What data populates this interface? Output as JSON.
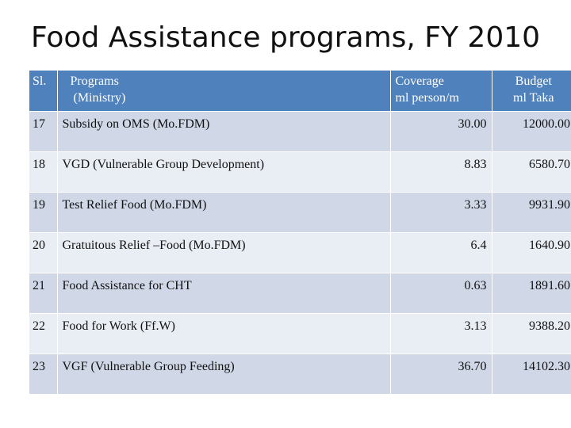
{
  "title": "Food Assistance programs, FY 2010",
  "table": {
    "headers": {
      "sl": "Sl.",
      "programs_line1": "Programs",
      "programs_line2": "(Ministry)",
      "coverage_line1": "Coverage",
      "coverage_line2": "ml person/m",
      "budget_line1": "Budget",
      "budget_line2": "ml Taka"
    },
    "rows": [
      {
        "sl": "17",
        "program": "Subsidy on OMS (Mo.FDM)",
        "coverage": "30.00",
        "budget": "12000.00"
      },
      {
        "sl": "18",
        "program": "VGD (Vulnerable Group Development)",
        "coverage": "8.83",
        "budget": "6580.70"
      },
      {
        "sl": "19",
        "program": "Test Relief Food (Mo.FDM)",
        "coverage": "3.33",
        "budget": "9931.90"
      },
      {
        "sl": "20",
        "program": "Gratuitous Relief –Food (Mo.FDM)",
        "coverage": "6.4",
        "budget": "1640.90"
      },
      {
        "sl": "21",
        "program": "Food Assistance for CHT",
        "coverage": "0.63",
        "budget": "1891.60"
      },
      {
        "sl": "22",
        "program": "Food for Work (Ff.W)",
        "coverage": "3.13",
        "budget": "9388.20"
      },
      {
        "sl": "23",
        "program": "VGF (Vulnerable Group Feeding)",
        "coverage": "36.70",
        "budget": "14102.30"
      }
    ]
  }
}
